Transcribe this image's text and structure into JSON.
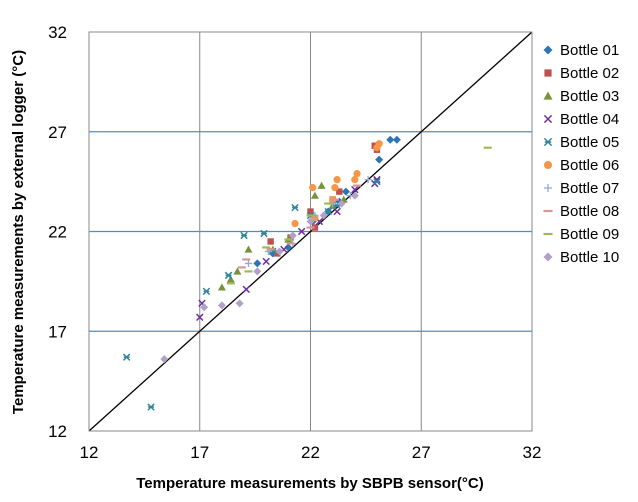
{
  "chart_data": {
    "type": "scatter",
    "xlabel": "Temperature measurements by SBPB sensor(°C)",
    "ylabel": "Temperature measurements  by external logger (°C)",
    "xlim": [
      12,
      32
    ],
    "ylim": [
      12,
      32
    ],
    "xticks": [
      12,
      17,
      22,
      27,
      32
    ],
    "yticks": [
      12,
      17,
      22,
      27,
      32
    ],
    "tick_labels_x": [
      "12",
      "17",
      "22",
      "27",
      "32"
    ],
    "tick_labels_y": [
      "12",
      "17",
      "22",
      "27",
      "32"
    ],
    "grid": true,
    "legend_position": "right",
    "reference_line": {
      "from": [
        12,
        12
      ],
      "to": [
        32,
        32
      ],
      "color": "#000000"
    },
    "series": [
      {
        "name": "Bottle 01",
        "marker": "diamond",
        "color": "#2E75B6",
        "points": [
          [
            19.6,
            20.4
          ],
          [
            20.3,
            20.9
          ],
          [
            21.0,
            21.2
          ],
          [
            22.1,
            22.5
          ],
          [
            22.8,
            23.0
          ],
          [
            23.3,
            23.5
          ],
          [
            23.6,
            24.0
          ],
          [
            25.1,
            25.6
          ],
          [
            25.6,
            26.6
          ],
          [
            25.9,
            26.6
          ]
        ]
      },
      {
        "name": "Bottle 02",
        "marker": "square",
        "color": "#C0504D",
        "points": [
          [
            20.2,
            21.5
          ],
          [
            20.5,
            20.9
          ],
          [
            21.1,
            21.7
          ],
          [
            22.0,
            23.0
          ],
          [
            22.2,
            22.2
          ],
          [
            23.0,
            23.6
          ],
          [
            23.3,
            24.0
          ],
          [
            24.9,
            26.3
          ],
          [
            25.0,
            26.1
          ]
        ]
      },
      {
        "name": "Bottle 03",
        "marker": "triangle",
        "color": "#77933C",
        "points": [
          [
            18.0,
            19.2
          ],
          [
            18.4,
            19.6
          ],
          [
            18.7,
            20.0
          ],
          [
            19.2,
            21.1
          ],
          [
            20.3,
            21.1
          ],
          [
            21.0,
            21.6
          ],
          [
            22.2,
            23.8
          ],
          [
            22.5,
            24.3
          ],
          [
            23.0,
            23.3
          ],
          [
            23.5,
            23.6
          ]
        ]
      },
      {
        "name": "Bottle 04",
        "marker": "x",
        "color": "#7030A0",
        "points": [
          [
            17.0,
            17.7
          ],
          [
            17.1,
            18.4
          ],
          [
            19.1,
            19.1
          ],
          [
            20.0,
            20.5
          ],
          [
            20.8,
            21.1
          ],
          [
            21.6,
            22.0
          ],
          [
            22.4,
            22.5
          ],
          [
            23.2,
            23.0
          ],
          [
            24.0,
            24.1
          ],
          [
            24.9,
            24.4
          ],
          [
            25.0,
            24.6
          ]
        ]
      },
      {
        "name": "Bottle 05",
        "marker": "star",
        "color": "#31859C",
        "points": [
          [
            13.7,
            15.7
          ],
          [
            14.8,
            13.2
          ],
          [
            17.3,
            19.0
          ],
          [
            18.3,
            19.8
          ],
          [
            19.0,
            21.8
          ],
          [
            19.9,
            21.9
          ],
          [
            20.3,
            21.0
          ],
          [
            21.3,
            23.2
          ],
          [
            22.0,
            22.8
          ],
          [
            22.8,
            23.0
          ],
          [
            23.2,
            23.3
          ],
          [
            25.0,
            24.5
          ]
        ]
      },
      {
        "name": "Bottle 06",
        "marker": "circle",
        "color": "#F79646",
        "points": [
          [
            21.3,
            22.4
          ],
          [
            22.1,
            24.2
          ],
          [
            22.2,
            22.7
          ],
          [
            23.0,
            23.6
          ],
          [
            23.1,
            24.2
          ],
          [
            23.2,
            24.6
          ],
          [
            24.0,
            24.6
          ],
          [
            24.1,
            24.9
          ],
          [
            25.0,
            26.2
          ],
          [
            25.1,
            26.4
          ]
        ]
      },
      {
        "name": "Bottle 07",
        "marker": "plus",
        "color": "#8EA9DB",
        "points": [
          [
            19.2,
            20.4
          ],
          [
            20.1,
            21.0
          ],
          [
            21.2,
            21.4
          ],
          [
            22.2,
            22.8
          ],
          [
            23.0,
            23.4
          ],
          [
            23.8,
            23.8
          ],
          [
            24.6,
            24.6
          ]
        ]
      },
      {
        "name": "Bottle 08",
        "marker": "dash",
        "color": "#D99694",
        "points": [
          [
            18.9,
            20.2
          ],
          [
            19.1,
            20.6
          ],
          [
            20.2,
            21.1
          ],
          [
            21.1,
            21.4
          ],
          [
            22.0,
            22.2
          ],
          [
            23.1,
            23.6
          ],
          [
            24.1,
            24.3
          ]
        ]
      },
      {
        "name": "Bottle 09",
        "marker": "dash",
        "color": "#9BBB59",
        "points": [
          [
            18.4,
            19.4
          ],
          [
            19.2,
            20.0
          ],
          [
            20.0,
            21.2
          ],
          [
            21.0,
            21.6
          ],
          [
            22.0,
            22.8
          ],
          [
            22.8,
            23.4
          ],
          [
            30.0,
            26.2
          ]
        ]
      },
      {
        "name": "Bottle 10",
        "marker": "diamond",
        "color": "#B1A0C7",
        "points": [
          [
            15.4,
            15.6
          ],
          [
            17.2,
            18.2
          ],
          [
            18.0,
            18.3
          ],
          [
            18.8,
            18.4
          ],
          [
            19.6,
            20.0
          ],
          [
            20.6,
            21.0
          ],
          [
            21.2,
            21.8
          ],
          [
            22.0,
            22.5
          ],
          [
            22.6,
            22.8
          ],
          [
            23.4,
            23.4
          ],
          [
            24.0,
            23.8
          ]
        ]
      }
    ]
  }
}
